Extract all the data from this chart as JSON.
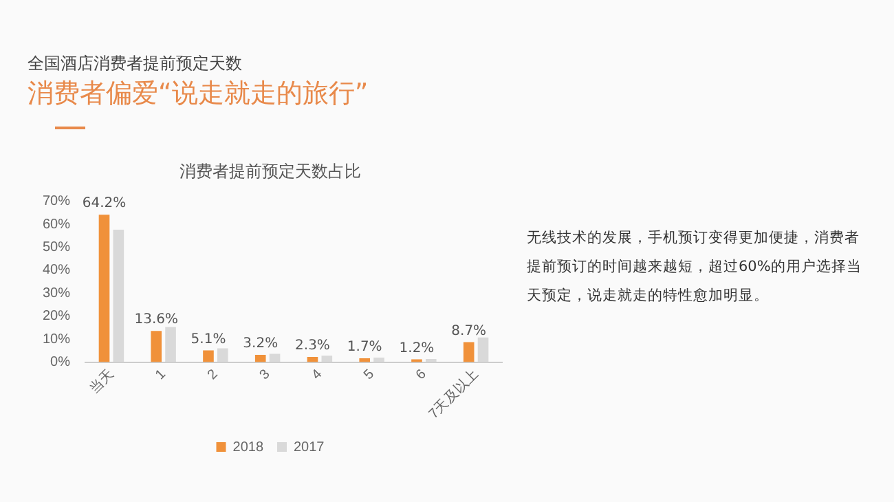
{
  "chart_data": {
    "type": "bar",
    "title": "消费者提前预定天数占比",
    "annotations": [
      "全国酒店消费者提前预定天数",
      "消费者偏爱“说走就走的旅行”",
      "无线技术的发展，手机预订变得更加便捷，消费者提前预订的时间越来越短，超过60%的用户选择当天预定，说走就走的特性愈加明显。"
    ],
    "categories": [
      "当天",
      "1",
      "2",
      "3",
      "4",
      "5",
      "6",
      "7天及以上"
    ],
    "series": [
      {
        "name": "2018",
        "color": "#f0913a",
        "values": [
          64.2,
          13.6,
          5.1,
          3.2,
          2.3,
          1.7,
          1.2,
          8.7
        ],
        "value_labels": [
          "64.2%",
          "13.6%",
          "5.1%",
          "3.2%",
          "2.3%",
          "1.7%",
          "1.2%",
          "8.7%"
        ]
      },
      {
        "name": "2017",
        "color": "#d9d9d9",
        "values": [
          57.7,
          15.3,
          6.0,
          3.6,
          2.8,
          2.0,
          1.4,
          10.7
        ]
      }
    ],
    "ylim": [
      0,
      70
    ],
    "yticks": [
      {
        "value": 0,
        "label": "0%"
      },
      {
        "value": 10,
        "label": "10%"
      },
      {
        "value": 20,
        "label": "20%"
      },
      {
        "value": 30,
        "label": "30%"
      },
      {
        "value": 40,
        "label": "40%"
      },
      {
        "value": 50,
        "label": "50%"
      },
      {
        "value": 60,
        "label": "60%"
      },
      {
        "value": 70,
        "label": "70%"
      }
    ],
    "grid": false,
    "legend": "bottom"
  }
}
